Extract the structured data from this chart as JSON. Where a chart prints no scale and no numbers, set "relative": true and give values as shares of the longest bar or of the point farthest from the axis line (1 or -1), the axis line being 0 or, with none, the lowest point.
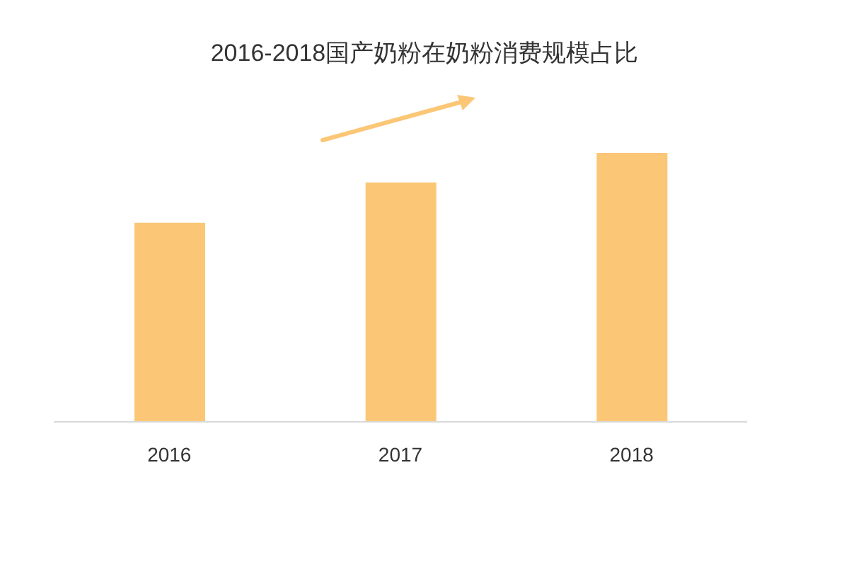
{
  "chart_data": {
    "type": "bar",
    "title": "2016-2018国产奶粉在奶粉消费规模占比",
    "categories": [
      "2016",
      "2017",
      "2018"
    ],
    "values": [
      0.74,
      0.89,
      1
    ],
    "color": "#fbc777",
    "relative": true,
    "grid": false,
    "legend": false
  }
}
